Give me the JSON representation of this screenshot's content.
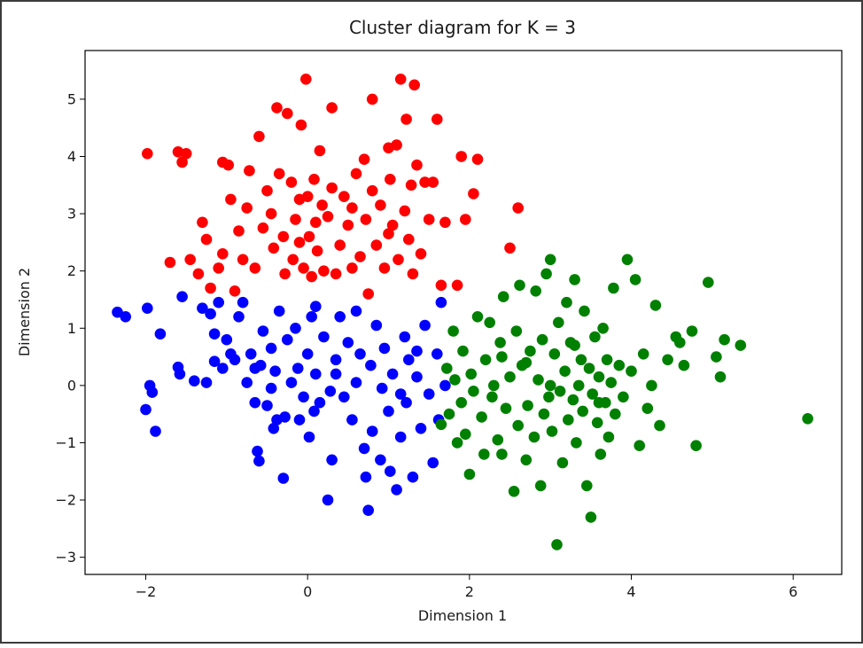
{
  "chart_data": {
    "type": "scatter",
    "title": "Cluster diagram for K = 3",
    "xlabel": "Dimension 1",
    "ylabel": "Dimension 2",
    "xlim": [
      -2.75,
      6.6
    ],
    "ylim": [
      -3.3,
      5.85
    ],
    "xticks": [
      -2,
      0,
      2,
      4,
      6
    ],
    "yticks": [
      -3,
      -2,
      -1,
      0,
      1,
      2,
      3,
      4,
      5
    ],
    "grid": false,
    "legend": "none",
    "series": [
      {
        "color": "#ff0000",
        "points": [
          [
            -1.98,
            4.05
          ],
          [
            -1.7,
            2.15
          ],
          [
            -1.6,
            4.08
          ],
          [
            -1.55,
            3.9
          ],
          [
            -1.5,
            4.05
          ],
          [
            -1.45,
            2.2
          ],
          [
            -1.35,
            1.95
          ],
          [
            -1.3,
            2.85
          ],
          [
            -1.25,
            2.55
          ],
          [
            -1.2,
            1.7
          ],
          [
            -1.1,
            2.05
          ],
          [
            -1.05,
            2.3
          ],
          [
            -0.98,
            3.85
          ],
          [
            -0.95,
            3.25
          ],
          [
            -0.9,
            1.65
          ],
          [
            -0.85,
            2.7
          ],
          [
            -0.8,
            2.2
          ],
          [
            -0.75,
            3.1
          ],
          [
            -0.72,
            3.75
          ],
          [
            -0.65,
            2.05
          ],
          [
            -0.6,
            4.35
          ],
          [
            -0.55,
            2.75
          ],
          [
            -0.5,
            3.4
          ],
          [
            -0.45,
            3.0
          ],
          [
            -0.42,
            2.4
          ],
          [
            -0.38,
            4.85
          ],
          [
            -0.35,
            3.7
          ],
          [
            -0.3,
            2.6
          ],
          [
            -0.28,
            1.95
          ],
          [
            -0.25,
            4.75
          ],
          [
            -0.2,
            3.55
          ],
          [
            -0.18,
            2.2
          ],
          [
            -0.15,
            2.9
          ],
          [
            -0.1,
            3.25
          ],
          [
            -0.08,
            4.55
          ],
          [
            -0.05,
            2.05
          ],
          [
            -0.02,
            5.35
          ],
          [
            0.0,
            3.3
          ],
          [
            0.02,
            2.6
          ],
          [
            0.05,
            1.9
          ],
          [
            0.08,
            3.6
          ],
          [
            0.1,
            2.85
          ],
          [
            0.12,
            2.35
          ],
          [
            0.15,
            4.1
          ],
          [
            0.18,
            3.15
          ],
          [
            0.2,
            2.0
          ],
          [
            0.25,
            2.95
          ],
          [
            0.3,
            4.85
          ],
          [
            0.35,
            1.95
          ],
          [
            0.4,
            2.45
          ],
          [
            0.45,
            3.3
          ],
          [
            0.5,
            2.8
          ],
          [
            0.55,
            2.05
          ],
          [
            0.6,
            3.7
          ],
          [
            0.65,
            2.25
          ],
          [
            0.7,
            3.95
          ],
          [
            0.72,
            2.9
          ],
          [
            0.75,
            1.6
          ],
          [
            0.8,
            3.4
          ],
          [
            0.85,
            2.45
          ],
          [
            0.9,
            3.15
          ],
          [
            0.95,
            2.05
          ],
          [
            1.0,
            4.15
          ],
          [
            1.02,
            3.6
          ],
          [
            1.05,
            2.8
          ],
          [
            1.1,
            4.2
          ],
          [
            1.12,
            2.2
          ],
          [
            1.15,
            5.35
          ],
          [
            1.2,
            3.05
          ],
          [
            1.22,
            4.65
          ],
          [
            1.25,
            2.55
          ],
          [
            1.28,
            3.5
          ],
          [
            1.3,
            1.95
          ],
          [
            1.32,
            5.25
          ],
          [
            1.35,
            3.85
          ],
          [
            1.4,
            2.3
          ],
          [
            1.45,
            3.55
          ],
          [
            1.5,
            2.9
          ],
          [
            1.55,
            3.55
          ],
          [
            1.6,
            4.65
          ],
          [
            1.65,
            1.75
          ],
          [
            1.7,
            2.85
          ],
          [
            1.85,
            1.75
          ],
          [
            1.9,
            4.0
          ],
          [
            1.95,
            2.9
          ],
          [
            2.05,
            3.35
          ],
          [
            2.1,
            3.95
          ],
          [
            2.5,
            2.4
          ],
          [
            2.6,
            3.1
          ],
          [
            0.55,
            3.1
          ],
          [
            -0.1,
            2.5
          ],
          [
            0.3,
            3.45
          ],
          [
            1.0,
            2.65
          ],
          [
            -1.05,
            3.9
          ],
          [
            0.8,
            5.0
          ]
        ]
      },
      {
        "color": "#0000ff",
        "points": [
          [
            -2.35,
            1.28
          ],
          [
            -2.25,
            1.2
          ],
          [
            -2.0,
            -0.42
          ],
          [
            -1.98,
            1.35
          ],
          [
            -1.95,
            0.0
          ],
          [
            -1.92,
            -0.12
          ],
          [
            -1.88,
            -0.8
          ],
          [
            -1.82,
            0.9
          ],
          [
            -1.6,
            0.32
          ],
          [
            -1.58,
            0.2
          ],
          [
            -1.55,
            1.55
          ],
          [
            -1.4,
            0.08
          ],
          [
            -1.3,
            1.35
          ],
          [
            -1.25,
            0.05
          ],
          [
            -1.2,
            1.25
          ],
          [
            -1.15,
            0.42
          ],
          [
            -1.1,
            1.45
          ],
          [
            -1.05,
            0.3
          ],
          [
            -1.0,
            0.8
          ],
          [
            -0.95,
            0.55
          ],
          [
            -0.9,
            0.45
          ],
          [
            -0.85,
            1.2
          ],
          [
            -0.8,
            1.45
          ],
          [
            -0.75,
            0.05
          ],
          [
            -0.7,
            0.55
          ],
          [
            -0.65,
            -0.3
          ],
          [
            -0.62,
            -1.15
          ],
          [
            -0.6,
            -1.32
          ],
          [
            -0.58,
            0.35
          ],
          [
            -0.55,
            0.95
          ],
          [
            -0.5,
            -0.35
          ],
          [
            -0.45,
            0.65
          ],
          [
            -0.42,
            -0.75
          ],
          [
            -0.4,
            0.25
          ],
          [
            -0.38,
            -0.6
          ],
          [
            -0.35,
            1.3
          ],
          [
            -0.3,
            -1.62
          ],
          [
            -0.28,
            -0.55
          ],
          [
            -0.25,
            0.8
          ],
          [
            -0.2,
            0.05
          ],
          [
            -0.15,
            1.0
          ],
          [
            -0.12,
            0.3
          ],
          [
            -0.1,
            -0.6
          ],
          [
            -0.05,
            -0.2
          ],
          [
            0.0,
            0.55
          ],
          [
            0.02,
            -0.9
          ],
          [
            0.05,
            1.2
          ],
          [
            0.08,
            -0.45
          ],
          [
            0.1,
            0.2
          ],
          [
            0.15,
            -0.3
          ],
          [
            0.2,
            0.85
          ],
          [
            0.25,
            -2.0
          ],
          [
            0.28,
            -0.1
          ],
          [
            0.3,
            -1.3
          ],
          [
            0.35,
            0.45
          ],
          [
            0.4,
            1.2
          ],
          [
            0.45,
            -0.2
          ],
          [
            0.5,
            0.75
          ],
          [
            0.55,
            -0.6
          ],
          [
            0.6,
            0.05
          ],
          [
            0.65,
            0.55
          ],
          [
            0.7,
            -1.1
          ],
          [
            0.72,
            -1.6
          ],
          [
            0.75,
            -2.18
          ],
          [
            0.78,
            0.35
          ],
          [
            0.8,
            -0.8
          ],
          [
            0.85,
            1.05
          ],
          [
            0.9,
            -1.3
          ],
          [
            0.92,
            -0.05
          ],
          [
            0.95,
            0.65
          ],
          [
            1.0,
            -0.45
          ],
          [
            1.02,
            -1.5
          ],
          [
            1.05,
            0.2
          ],
          [
            1.1,
            -1.82
          ],
          [
            1.15,
            -0.9
          ],
          [
            1.2,
            0.85
          ],
          [
            1.22,
            -0.3
          ],
          [
            1.25,
            0.45
          ],
          [
            1.3,
            -1.6
          ],
          [
            1.35,
            0.15
          ],
          [
            1.4,
            -0.75
          ],
          [
            1.45,
            1.05
          ],
          [
            1.5,
            -0.15
          ],
          [
            1.55,
            -1.35
          ],
          [
            1.6,
            0.55
          ],
          [
            1.62,
            -0.6
          ],
          [
            1.65,
            1.45
          ],
          [
            1.7,
            0.0
          ],
          [
            0.35,
            0.2
          ],
          [
            -0.45,
            -0.05
          ],
          [
            0.6,
            1.3
          ],
          [
            1.15,
            -0.15
          ],
          [
            -1.15,
            0.9
          ],
          [
            0.1,
            1.38
          ],
          [
            1.35,
            0.6
          ],
          [
            -0.65,
            0.3
          ]
        ]
      },
      {
        "color": "#008000",
        "points": [
          [
            1.65,
            -0.68
          ],
          [
            1.72,
            0.3
          ],
          [
            1.75,
            -0.5
          ],
          [
            1.8,
            0.95
          ],
          [
            1.82,
            0.1
          ],
          [
            1.85,
            -1.0
          ],
          [
            1.9,
            -0.3
          ],
          [
            1.92,
            0.6
          ],
          [
            1.95,
            -0.85
          ],
          [
            2.0,
            -1.55
          ],
          [
            2.02,
            0.2
          ],
          [
            2.05,
            -0.1
          ],
          [
            2.1,
            1.2
          ],
          [
            2.15,
            -0.55
          ],
          [
            2.18,
            -1.2
          ],
          [
            2.2,
            0.45
          ],
          [
            2.25,
            1.1
          ],
          [
            2.28,
            -0.2
          ],
          [
            2.3,
            0.0
          ],
          [
            2.35,
            -0.95
          ],
          [
            2.38,
            0.75
          ],
          [
            2.4,
            -1.2
          ],
          [
            2.42,
            1.55
          ],
          [
            2.45,
            -0.4
          ],
          [
            2.5,
            0.15
          ],
          [
            2.55,
            -1.85
          ],
          [
            2.58,
            0.95
          ],
          [
            2.6,
            -0.7
          ],
          [
            2.62,
            1.75
          ],
          [
            2.65,
            0.35
          ],
          [
            2.7,
            -1.3
          ],
          [
            2.72,
            -0.35
          ],
          [
            2.75,
            0.6
          ],
          [
            2.8,
            -0.9
          ],
          [
            2.82,
            1.65
          ],
          [
            2.85,
            0.1
          ],
          [
            2.88,
            -1.75
          ],
          [
            2.9,
            0.8
          ],
          [
            2.92,
            -0.5
          ],
          [
            2.95,
            1.95
          ],
          [
            2.98,
            -0.2
          ],
          [
            3.0,
            2.2
          ],
          [
            3.02,
            -0.8
          ],
          [
            3.05,
            0.55
          ],
          [
            3.08,
            -2.78
          ],
          [
            3.1,
            1.1
          ],
          [
            3.12,
            -0.1
          ],
          [
            3.15,
            -1.35
          ],
          [
            3.18,
            0.25
          ],
          [
            3.2,
            1.45
          ],
          [
            3.22,
            -0.6
          ],
          [
            3.25,
            0.75
          ],
          [
            3.28,
            -0.25
          ],
          [
            3.3,
            1.85
          ],
          [
            3.32,
            -1.0
          ],
          [
            3.35,
            0.0
          ],
          [
            3.38,
            0.45
          ],
          [
            3.4,
            -0.45
          ],
          [
            3.42,
            1.3
          ],
          [
            3.45,
            -1.75
          ],
          [
            3.48,
            0.3
          ],
          [
            3.5,
            -2.3
          ],
          [
            3.52,
            -0.15
          ],
          [
            3.55,
            0.85
          ],
          [
            3.58,
            -0.65
          ],
          [
            3.6,
            0.15
          ],
          [
            3.62,
            -1.2
          ],
          [
            3.65,
            1.0
          ],
          [
            3.68,
            -0.3
          ],
          [
            3.7,
            0.45
          ],
          [
            3.72,
            -0.9
          ],
          [
            3.75,
            0.05
          ],
          [
            3.78,
            1.7
          ],
          [
            3.8,
            -0.5
          ],
          [
            3.85,
            0.35
          ],
          [
            3.9,
            -0.2
          ],
          [
            3.95,
            2.2
          ],
          [
            4.0,
            0.25
          ],
          [
            4.05,
            1.85
          ],
          [
            4.1,
            -1.05
          ],
          [
            4.15,
            0.55
          ],
          [
            4.2,
            -0.4
          ],
          [
            4.25,
            0.0
          ],
          [
            4.3,
            1.4
          ],
          [
            4.35,
            -0.7
          ],
          [
            4.45,
            0.45
          ],
          [
            4.55,
            0.85
          ],
          [
            4.65,
            0.35
          ],
          [
            4.75,
            0.95
          ],
          [
            4.8,
            -1.05
          ],
          [
            4.95,
            1.8
          ],
          [
            5.05,
            0.5
          ],
          [
            5.1,
            0.15
          ],
          [
            5.15,
            0.8
          ],
          [
            5.35,
            0.7
          ],
          [
            6.18,
            -0.58
          ],
          [
            3.0,
            0.0
          ],
          [
            3.3,
            0.7
          ],
          [
            2.7,
            0.4
          ],
          [
            3.6,
            -0.3
          ],
          [
            2.4,
            0.5
          ],
          [
            4.6,
            0.75
          ]
        ]
      }
    ]
  }
}
